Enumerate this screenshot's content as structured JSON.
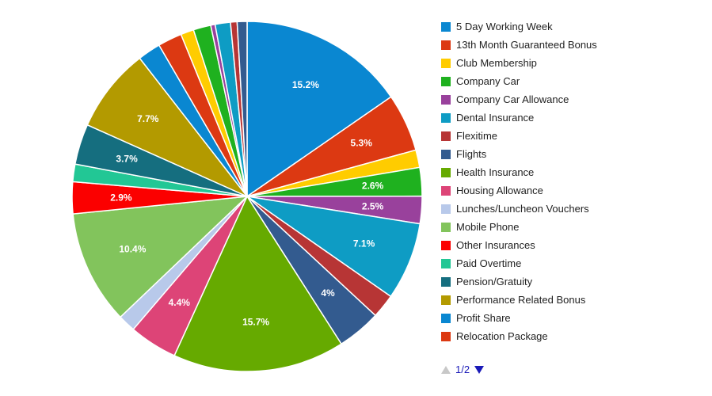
{
  "chart_data": {
    "type": "pie",
    "title": "",
    "slices": [
      {
        "label": "5 Day Working Week",
        "value": 15.2,
        "color": "#0a87d1",
        "show_label": true
      },
      {
        "label": "13th Month Guaranteed Bonus",
        "value": 5.3,
        "color": "#dc3912",
        "show_label": true
      },
      {
        "label": "Club Membership",
        "value": 1.6,
        "color": "#ffcc00",
        "show_label": false
      },
      {
        "label": "Company Car",
        "value": 2.6,
        "color": "#1fb11f",
        "show_label": true
      },
      {
        "label": "Company Car Allowance",
        "value": 2.5,
        "color": "#99419c",
        "show_label": true
      },
      {
        "label": "Dental Insurance",
        "value": 7.1,
        "color": "#0e9cc4",
        "show_label": true
      },
      {
        "label": "Flexitime",
        "value": 2.2,
        "color": "#b73535",
        "show_label": false
      },
      {
        "label": "Flights",
        "value": 4.0,
        "color": "#335b8f",
        "show_label": true
      },
      {
        "label": "Health Insurance",
        "value": 15.7,
        "color": "#66aa00",
        "show_label": true
      },
      {
        "label": "Housing Allowance",
        "value": 4.4,
        "color": "#dd4477",
        "show_label": true
      },
      {
        "label": "Lunches/Luncheon Vouchers",
        "value": 1.6,
        "color": "#b8c9ea",
        "show_label": false
      },
      {
        "label": "Mobile Phone",
        "value": 10.4,
        "color": "#82c45c",
        "show_label": true
      },
      {
        "label": "Other Insurances",
        "value": 2.9,
        "color": "#fb0000",
        "show_label": true
      },
      {
        "label": "Paid Overtime",
        "value": 1.6,
        "color": "#22c795",
        "show_label": false
      },
      {
        "label": "Pension/Gratuity",
        "value": 3.7,
        "color": "#156e7f",
        "show_label": true
      },
      {
        "label": "Performance Related Bonus",
        "value": 7.7,
        "color": "#b39a00",
        "show_label": true
      },
      {
        "label": "Profit Share",
        "value": 2.1,
        "color": "#0a87d1",
        "show_label": false
      },
      {
        "label": "Relocation Package",
        "value": 2.2,
        "color": "#dc3912",
        "show_label": false
      },
      {
        "label": "",
        "value": 1.2,
        "color": "#ffcc00",
        "show_label": false
      },
      {
        "label": "",
        "value": 1.6,
        "color": "#1fb11f",
        "show_label": false
      },
      {
        "label": "",
        "value": 0.4,
        "color": "#99419c",
        "show_label": false
      },
      {
        "label": "",
        "value": 1.4,
        "color": "#0e9cc4",
        "show_label": false
      },
      {
        "label": "",
        "value": 0.6,
        "color": "#b73535",
        "show_label": false
      },
      {
        "label": "",
        "value": 0.9,
        "color": "#335b8f",
        "show_label": false
      }
    ],
    "legend": {
      "placement": "right",
      "items": [
        {
          "label": "5 Day Working Week",
          "color": "#0a87d1"
        },
        {
          "label": "13th Month Guaranteed Bonus",
          "color": "#dc3912"
        },
        {
          "label": "Club Membership",
          "color": "#ffcc00"
        },
        {
          "label": "Company Car",
          "color": "#1fb11f"
        },
        {
          "label": "Company Car Allowance",
          "color": "#99419c"
        },
        {
          "label": "Dental Insurance",
          "color": "#0e9cc4"
        },
        {
          "label": "Flexitime",
          "color": "#b73535"
        },
        {
          "label": "Flights",
          "color": "#335b8f"
        },
        {
          "label": "Health Insurance",
          "color": "#66aa00"
        },
        {
          "label": "Housing Allowance",
          "color": "#dd4477"
        },
        {
          "label": "Lunches/Luncheon Vouchers",
          "color": "#b8c9ea"
        },
        {
          "label": "Mobile Phone",
          "color": "#82c45c"
        },
        {
          "label": "Other Insurances",
          "color": "#fb0000"
        },
        {
          "label": "Paid Overtime",
          "color": "#22c795"
        },
        {
          "label": "Pension/Gratuity",
          "color": "#156e7f"
        },
        {
          "label": "Performance Related Bonus",
          "color": "#b39a00"
        },
        {
          "label": "Profit Share",
          "color": "#0a87d1"
        },
        {
          "label": "Relocation Package",
          "color": "#dc3912"
        }
      ]
    },
    "pager": {
      "text": "1/2",
      "prev_icon": "triangle-up-icon",
      "next_icon": "triangle-down-icon"
    }
  }
}
